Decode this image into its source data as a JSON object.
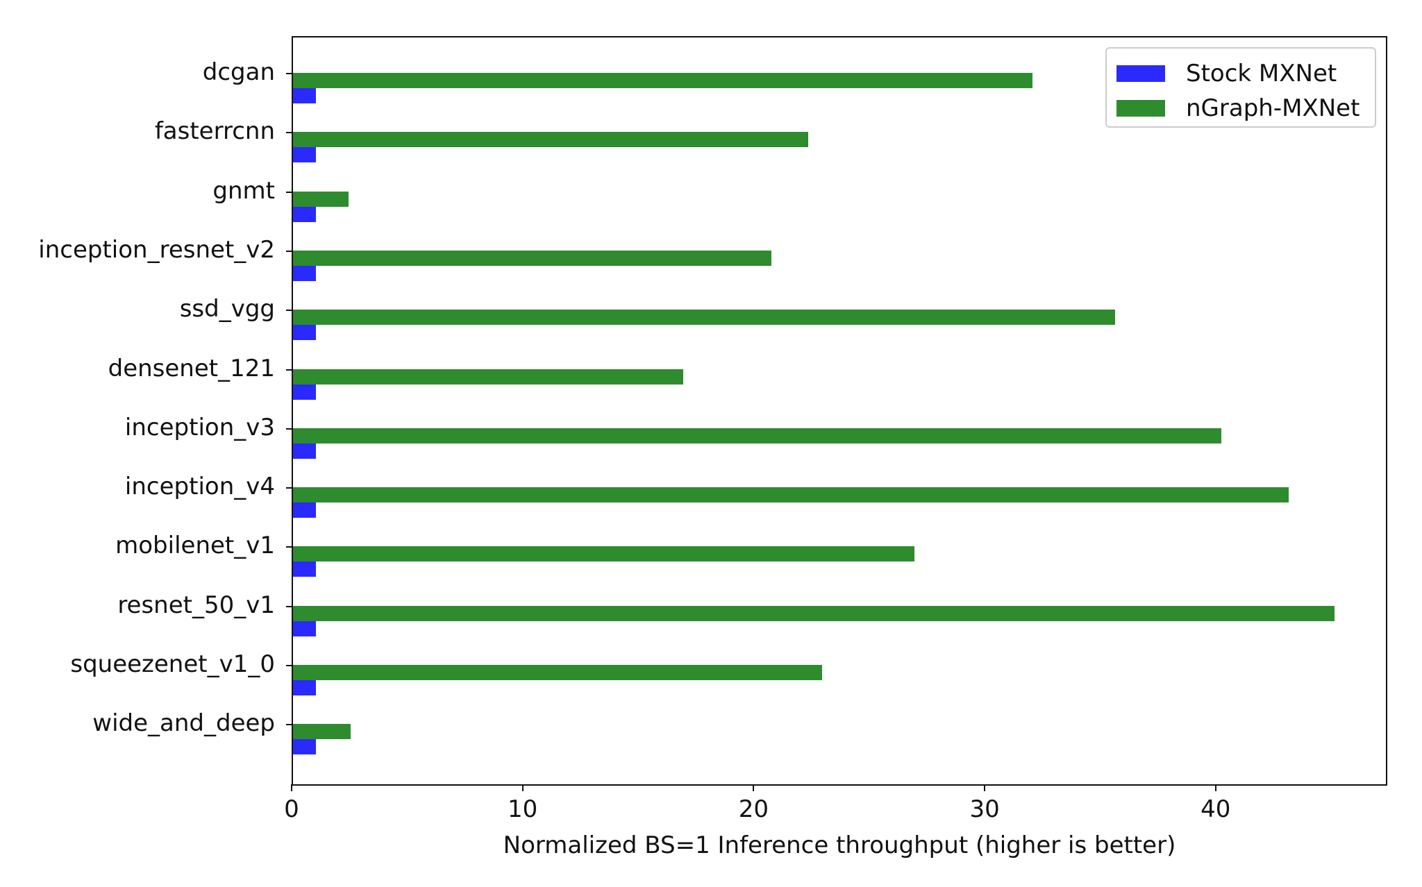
{
  "chart_data": {
    "type": "bar",
    "orientation": "horizontal",
    "title": "",
    "xlabel": "Normalized BS=1 Inference throughput (higher is better)",
    "ylabel": "",
    "xlim": [
      0,
      47.3
    ],
    "xticks": [
      0,
      10,
      20,
      30,
      40
    ],
    "grid": false,
    "legend_position": "upper right",
    "categories": [
      "dcgan",
      "fasterrcnn",
      "gnmt",
      "inception_resnet_v2",
      "ssd_vgg",
      "densenet_121",
      "inception_v3",
      "inception_v4",
      "mobilenet_v1",
      "resnet_50_v1",
      "squeezenet_v1_0",
      "wide_and_deep"
    ],
    "series": [
      {
        "name": "Stock MXNet",
        "color": "#2a2aff",
        "values": [
          1,
          1,
          1,
          1,
          1,
          1,
          1,
          1,
          1,
          1,
          1,
          1
        ]
      },
      {
        "name": "nGraph-MXNet",
        "color": "#2e8b2e",
        "values": [
          32.0,
          22.3,
          2.4,
          20.7,
          35.6,
          16.9,
          40.2,
          43.1,
          26.9,
          45.1,
          22.9,
          2.5
        ]
      }
    ]
  },
  "legend": {
    "items": [
      {
        "label": "Stock MXNet",
        "color": "#2a2aff"
      },
      {
        "label": "nGraph-MXNet",
        "color": "#2e8b2e"
      }
    ]
  },
  "axis": {
    "x_tick_labels": [
      "0",
      "10",
      "20",
      "30",
      "40"
    ],
    "x_label": "Normalized BS=1 Inference throughput (higher is better)"
  }
}
